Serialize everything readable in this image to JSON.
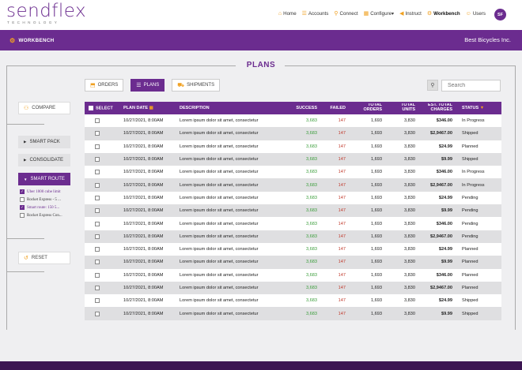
{
  "brand": {
    "name": "sendflex",
    "tagline": "TECHNOLOGY"
  },
  "nav": [
    {
      "label": "Home",
      "icon": "home-icon",
      "glyph": "⌂"
    },
    {
      "label": "Accounts",
      "icon": "list-icon",
      "glyph": "☰"
    },
    {
      "label": "Connect",
      "icon": "link-icon",
      "glyph": "⚲"
    },
    {
      "label": "Configure▾",
      "icon": "grid-icon",
      "glyph": "▦"
    },
    {
      "label": "Instruct",
      "icon": "megaphone-icon",
      "glyph": "◀"
    },
    {
      "label": "Workbench",
      "icon": "gears-icon",
      "glyph": "⚙"
    },
    {
      "label": "Users",
      "icon": "users-icon",
      "glyph": "☺"
    }
  ],
  "user": {
    "initials": "SF"
  },
  "subheader": {
    "title": "WORKBENCH",
    "company": "Best Bicycles Inc."
  },
  "page_title": "PLANS",
  "tabs": [
    {
      "label": "ORDERS",
      "glyph": "⬒"
    },
    {
      "label": "PLANS",
      "glyph": "☰"
    },
    {
      "label": "SHIPMENTS",
      "glyph": "⛟"
    }
  ],
  "search": {
    "placeholder": "Search",
    "glyph": "⚲"
  },
  "sidebar": {
    "compare": "COMPARE",
    "menu": [
      "SMART PACK",
      "CONSOLIDATE",
      "SMART ROUTE"
    ],
    "routes": [
      {
        "label": "Uber 1000 cube limit",
        "checked": true
      },
      {
        "label": "Rocket Express - 5 ...",
        "checked": false
      },
      {
        "label": "Smart route: 150 5...",
        "checked": true
      },
      {
        "label": "Rocket Express Con...",
        "checked": false
      }
    ],
    "reset": "RESET"
  },
  "table": {
    "headers": {
      "select": "SELECT",
      "plan_date": "PLAN DATE",
      "description": "DESCRIPTION",
      "success": "SUCCESS",
      "failed": "FAILED",
      "total_orders": [
        "TOTAL",
        "ORDERS"
      ],
      "total_units": [
        "TOTAL",
        "UNITS"
      ],
      "charges": [
        "EST. TOTAL",
        "CHARGES"
      ],
      "status": "STATUS"
    },
    "rows": [
      {
        "date": "10/27/2021, 8:00AM",
        "desc": "Lorem ipsum dolor sit amet, consectetur",
        "success": "3,683",
        "failed": "147",
        "orders": "1,693",
        "units": "3,830",
        "charges": "$346.00",
        "status": "In Progress"
      },
      {
        "date": "10/27/2021, 8:00AM",
        "desc": "Lorem ipsum dolor sit amet, consectetur",
        "success": "3,683",
        "failed": "147",
        "orders": "1,693",
        "units": "3,830",
        "charges": "$2,9467.00",
        "status": "Shipped"
      },
      {
        "date": "10/27/2021, 8:00AM",
        "desc": "Lorem ipsum dolor sit amet, consectetur",
        "success": "3,683",
        "failed": "147",
        "orders": "1,693",
        "units": "3,830",
        "charges": "$24.99",
        "status": "Planned"
      },
      {
        "date": "10/27/2021, 8:00AM",
        "desc": "Lorem ipsum dolor sit amet, consectetur",
        "success": "3,683",
        "failed": "147",
        "orders": "1,693",
        "units": "3,830",
        "charges": "$9.99",
        "status": "Shipped"
      },
      {
        "date": "10/27/2021, 8:00AM",
        "desc": "Lorem ipsum dolor sit amet, consectetur",
        "success": "3,683",
        "failed": "147",
        "orders": "1,693",
        "units": "3,830",
        "charges": "$346.00",
        "status": "In Progress"
      },
      {
        "date": "10/27/2021, 8:00AM",
        "desc": "Lorem ipsum dolor sit amet, consectetur",
        "success": "3,683",
        "failed": "147",
        "orders": "1,693",
        "units": "3,830",
        "charges": "$2,9467.00",
        "status": "In Progress"
      },
      {
        "date": "10/27/2021, 8:00AM",
        "desc": "Lorem ipsum dolor sit amet, consectetur",
        "success": "3,683",
        "failed": "147",
        "orders": "1,693",
        "units": "3,830",
        "charges": "$24.99",
        "status": "Pending"
      },
      {
        "date": "10/27/2021, 8:00AM",
        "desc": "Lorem ipsum dolor sit amet, consectetur",
        "success": "3,683",
        "failed": "147",
        "orders": "1,693",
        "units": "3,830",
        "charges": "$9.99",
        "status": "Pending"
      },
      {
        "date": "10/27/2021, 8:00AM",
        "desc": "Lorem ipsum dolor sit amet, consectetur",
        "success": "3,683",
        "failed": "147",
        "orders": "1,693",
        "units": "3,830",
        "charges": "$346.00",
        "status": "Pending"
      },
      {
        "date": "10/27/2021, 8:00AM",
        "desc": "Lorem ipsum dolor sit amet, consectetur",
        "success": "3,683",
        "failed": "147",
        "orders": "1,693",
        "units": "3,830",
        "charges": "$2,9467.00",
        "status": "Pending"
      },
      {
        "date": "10/27/2021, 8:00AM",
        "desc": "Lorem ipsum dolor sit amet, consectetur",
        "success": "3,683",
        "failed": "147",
        "orders": "1,693",
        "units": "3,830",
        "charges": "$24.99",
        "status": "Planned"
      },
      {
        "date": "10/27/2021, 8:00AM",
        "desc": "Lorem ipsum dolor sit amet, consectetur",
        "success": "3,683",
        "failed": "147",
        "orders": "1,693",
        "units": "3,830",
        "charges": "$9.99",
        "status": "Planned"
      },
      {
        "date": "10/27/2021, 8:00AM",
        "desc": "Lorem ipsum dolor sit amet, consectetur",
        "success": "3,683",
        "failed": "147",
        "orders": "1,693",
        "units": "3,830",
        "charges": "$346.00",
        "status": "Planned"
      },
      {
        "date": "10/27/2021, 8:00AM",
        "desc": "Lorem ipsum dolor sit amet, consectetur",
        "success": "3,683",
        "failed": "147",
        "orders": "1,693",
        "units": "3,830",
        "charges": "$2,9467.00",
        "status": "Planned"
      },
      {
        "date": "10/27/2021, 8:00AM",
        "desc": "Lorem ipsum dolor sit amet, consectetur",
        "success": "3,683",
        "failed": "147",
        "orders": "1,693",
        "units": "3,830",
        "charges": "$24.99",
        "status": "Shipped"
      },
      {
        "date": "10/27/2021, 8:00AM",
        "desc": "Lorem ipsum dolor sit amet, consectetur",
        "success": "3,683",
        "failed": "147",
        "orders": "1,693",
        "units": "3,830",
        "charges": "$9.99",
        "status": "Shipped"
      }
    ]
  }
}
